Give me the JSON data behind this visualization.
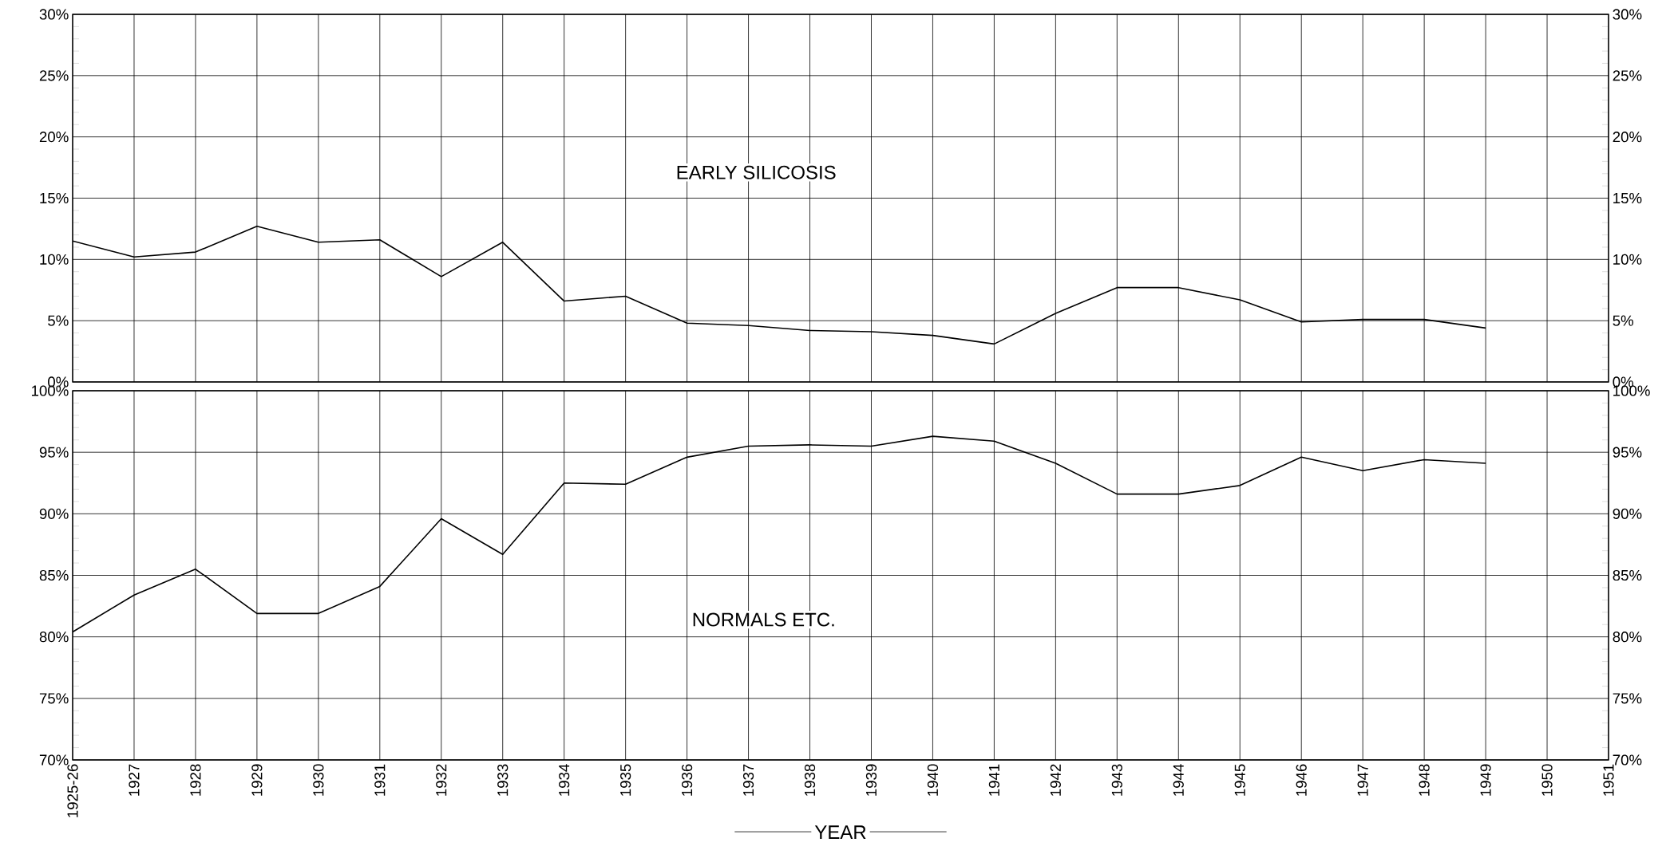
{
  "chart_data": [
    {
      "type": "line",
      "categories": [
        "1925-26",
        "1927",
        "1928",
        "1929",
        "1930",
        "1931",
        "1932",
        "1933",
        "1934",
        "1935",
        "1936",
        "1937",
        "1938",
        "1939",
        "1940",
        "1941",
        "1942",
        "1943",
        "1944",
        "1945",
        "1946",
        "1947",
        "1948",
        "1949",
        "1950",
        "1951"
      ],
      "values": [
        11.5,
        10.2,
        10.6,
        12.7,
        11.4,
        11.6,
        8.6,
        11.4,
        6.6,
        7.0,
        4.8,
        4.6,
        4.2,
        4.1,
        3.8,
        3.1,
        5.6,
        7.7,
        7.7,
        6.7,
        4.9,
        5.1,
        5.1,
        4.4,
        null,
        null
      ],
      "color": "#000000",
      "ylim": [
        0,
        30
      ],
      "yticks": [
        {
          "value": 0,
          "label": "0%"
        },
        {
          "value": 5,
          "label": "5%"
        },
        {
          "value": 10,
          "label": "10%"
        },
        {
          "value": 15,
          "label": "15%"
        },
        {
          "value": 20,
          "label": "20%"
        },
        {
          "value": 25,
          "label": "25%"
        },
        {
          "value": 30,
          "label": "30%"
        }
      ],
      "y2lim": [
        0,
        30
      ],
      "y2ticks": [
        {
          "value": 0,
          "label": "0%"
        },
        {
          "value": 5,
          "label": "5%"
        },
        {
          "value": 10,
          "label": "10%"
        },
        {
          "value": 15,
          "label": "15%"
        },
        {
          "value": 20,
          "label": "20%"
        },
        {
          "value": 25,
          "label": "25%"
        },
        {
          "value": 30,
          "label": "30%"
        }
      ],
      "annotations": [
        "EARLY SILICOSIS"
      ],
      "grid": true,
      "tick_labels": "y"
    },
    {
      "type": "line",
      "categories": [
        "1925-26",
        "1927",
        "1928",
        "1929",
        "1930",
        "1931",
        "1932",
        "1933",
        "1934",
        "1935",
        "1936",
        "1937",
        "1938",
        "1939",
        "1940",
        "1941",
        "1942",
        "1943",
        "1944",
        "1945",
        "1946",
        "1947",
        "1948",
        "1949",
        "1950",
        "1951"
      ],
      "values": [
        80.4,
        83.4,
        85.5,
        81.9,
        81.9,
        84.1,
        89.6,
        86.7,
        92.5,
        92.4,
        94.6,
        95.5,
        95.6,
        95.5,
        96.3,
        95.9,
        94.1,
        91.6,
        91.6,
        92.3,
        94.6,
        93.5,
        94.4,
        94.1,
        null,
        null
      ],
      "color": "#000000",
      "ylim": [
        70,
        100
      ],
      "yticks": [
        {
          "value": 70,
          "label": "70%"
        },
        {
          "value": 75,
          "label": "75%"
        },
        {
          "value": 80,
          "label": "80%"
        },
        {
          "value": 85,
          "label": "85%"
        },
        {
          "value": 90,
          "label": "90%"
        },
        {
          "value": 95,
          "label": "95%"
        },
        {
          "value": 100,
          "label": "100%"
        }
      ],
      "y2lim": [
        70,
        100
      ],
      "y2ticks": [
        {
          "value": 70,
          "label": "70%"
        },
        {
          "value": 75,
          "label": "75%"
        },
        {
          "value": 80,
          "label": "80%"
        },
        {
          "value": 85,
          "label": "85%"
        },
        {
          "value": 90,
          "label": "90%"
        },
        {
          "value": 95,
          "label": "95%"
        },
        {
          "value": 100,
          "label": "100%"
        }
      ],
      "annotations": [
        "NORMALS ETC."
      ],
      "xlabel": "YEAR",
      "grid": true
    }
  ]
}
